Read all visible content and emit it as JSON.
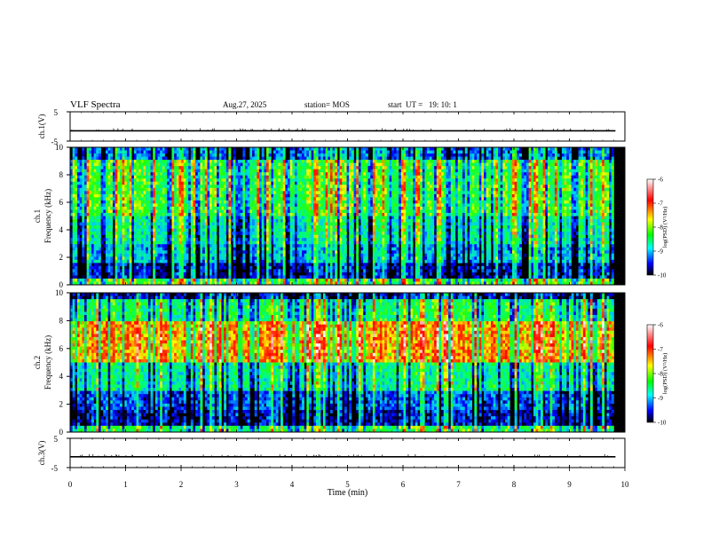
{
  "header": {
    "title": "VLF Spectra",
    "date": "Aug.27, 2025",
    "station": "station= MOS",
    "start": "start  UT =   19: 10: 1"
  },
  "colorbar": {
    "ticks": [
      "-6",
      "-7",
      "-8",
      "-9",
      "-10"
    ],
    "label": "log(PSD) (V²/Hz)",
    "colors": [
      "#ffffff",
      "#ff0000",
      "#ffff00",
      "#00ff00",
      "#00ffff",
      "#0000ff",
      "#000000"
    ]
  },
  "chart_data": [
    {
      "type": "line",
      "ylabel": "ch.1(V)",
      "ylim": [
        -5,
        5
      ],
      "yticks": [
        "5",
        "-5"
      ],
      "x": [
        0,
        10
      ],
      "values": [
        -1.5,
        -1.5
      ],
      "xlim": [
        0,
        10
      ]
    },
    {
      "type": "heatmap",
      "ylabel": "ch.1\nFrequency (kHz)",
      "ylabel_lines": [
        "ch.1",
        "Frequency  (kHz)"
      ],
      "ylim": [
        0,
        10
      ],
      "yticks": [
        "0",
        "2",
        "4",
        "6",
        "8",
        "10"
      ],
      "xlim": [
        0,
        10
      ],
      "data_end_min": 9.8,
      "value_range_log_psd": [
        -10,
        -6
      ],
      "mean_level_by_freq_khz": {
        "0-0.5": -8.0,
        "0.5-1.7": -9.6,
        "1.7-3": -9.0,
        "3-5": -8.6,
        "5-9": -8.1,
        "9-10": -9.2
      }
    },
    {
      "type": "heatmap",
      "ylabel": "ch.2\nFrequency (kHz)",
      "ylabel_lines": [
        "ch.2",
        "Frequency  (kHz)"
      ],
      "ylim": [
        0,
        10
      ],
      "yticks": [
        "0",
        "2",
        "4",
        "6",
        "8",
        "10"
      ],
      "xlim": [
        0,
        10
      ],
      "data_end_min": 9.8,
      "value_range_log_psd": [
        -10,
        -6
      ],
      "mean_level_by_freq_khz": {
        "0-0.5": -8.2,
        "0.5-1.7": -9.6,
        "1.7-3": -9.3,
        "3-5": -8.5,
        "5-8": -7.3,
        "8-9.5": -8.3,
        "9.5-10": -9.6
      }
    },
    {
      "type": "line",
      "ylabel": "ch.3(V)",
      "ylim": [
        -5,
        5
      ],
      "yticks": [
        "5",
        "-5"
      ],
      "x": [
        0,
        10
      ],
      "values": [
        -1.3,
        -1.3
      ],
      "xlim": [
        0,
        10
      ],
      "xlabel": "Time  (min)",
      "xticks": [
        "0",
        "1",
        "2",
        "3",
        "4",
        "5",
        "6",
        "7",
        "8",
        "9",
        "10"
      ]
    }
  ]
}
